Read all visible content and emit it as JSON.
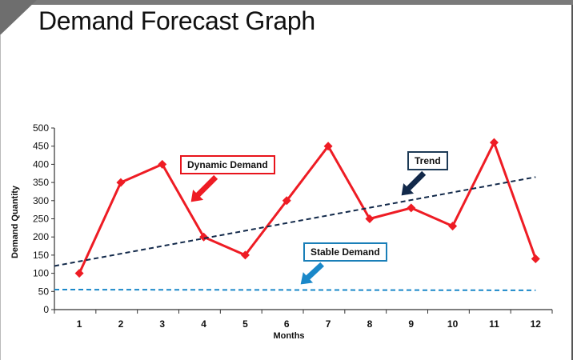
{
  "page": {
    "title": "Demand Forecast Graph"
  },
  "annotations": {
    "dynamic": "Dynamic Demand",
    "trend": "Trend",
    "stable": "Stable Demand"
  },
  "colors": {
    "dynamic": "#ee1c24",
    "trend": "#12294a",
    "stable": "#1a88c9",
    "axis": "#333333"
  },
  "chart_data": {
    "type": "line",
    "title": "",
    "xlabel": "Months",
    "ylabel": "Demand Quantity",
    "x": [
      1,
      2,
      3,
      4,
      5,
      6,
      7,
      8,
      9,
      10,
      11,
      12
    ],
    "xlim": [
      0.4,
      12.4
    ],
    "ylim": [
      0,
      500
    ],
    "yticks": [
      0,
      50,
      100,
      150,
      200,
      250,
      300,
      350,
      400,
      450,
      500
    ],
    "grid": false,
    "series": [
      {
        "key": "dynamic",
        "name": "Dynamic Demand",
        "style": "solid-diamond",
        "values": [
          100,
          350,
          400,
          200,
          150,
          300,
          450,
          250,
          280,
          230,
          460,
          140
        ]
      },
      {
        "key": "trend",
        "name": "Trend",
        "style": "dashed",
        "x": [
          0.4,
          12
        ],
        "values": [
          120,
          365
        ]
      },
      {
        "key": "stable",
        "name": "Stable Demand",
        "style": "dashed",
        "x": [
          0.4,
          12
        ],
        "values": [
          55,
          53
        ]
      }
    ]
  }
}
